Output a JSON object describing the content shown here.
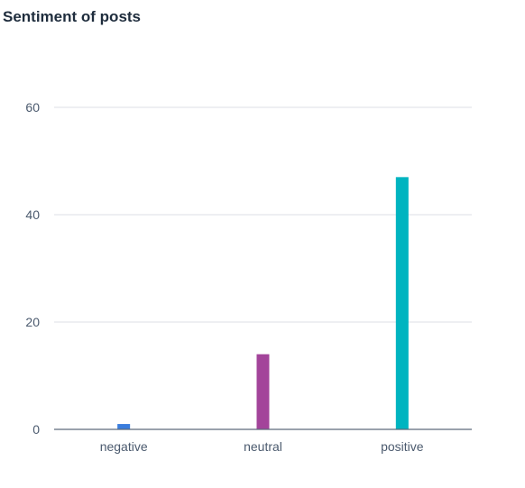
{
  "title": "Sentiment of posts",
  "chart_data": {
    "type": "bar",
    "title": "Sentiment of posts",
    "xlabel": "",
    "ylabel": "",
    "categories": [
      "negative",
      "neutral",
      "positive"
    ],
    "values": [
      1,
      14,
      47
    ],
    "colors": [
      "#3b7ddd",
      "#a3449a",
      "#00b4c0"
    ],
    "ylim": [
      0,
      60
    ],
    "yticks": [
      0,
      20,
      40,
      60
    ],
    "ytick_labels": [
      "0",
      "20",
      "40",
      "60"
    ],
    "grid": true,
    "legend": "none"
  }
}
